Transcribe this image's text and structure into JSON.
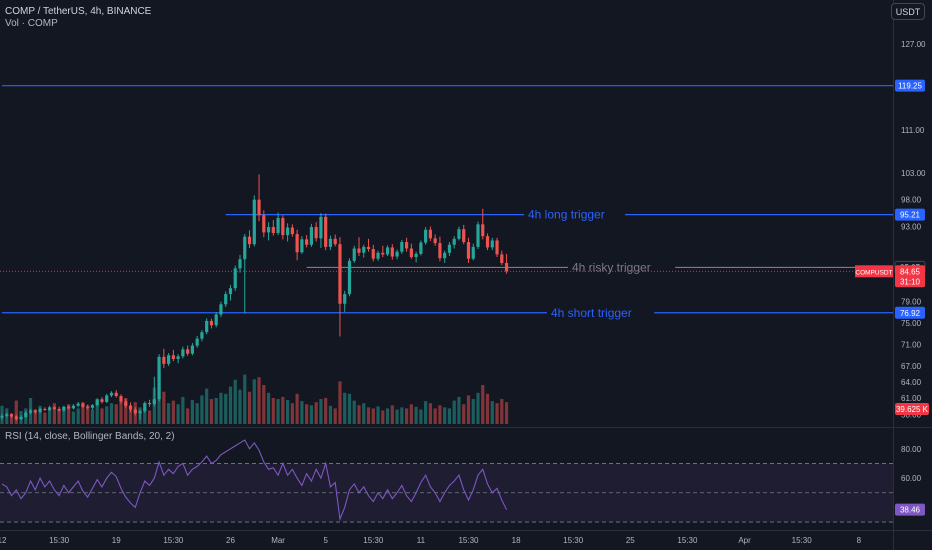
{
  "header": {
    "symbol_line": "COMP / TetherUS, 4h, BINANCE",
    "volume_label": "Vol · COMP",
    "currency_button": "USDT",
    "rsi_label": "RSI (14, close, Bollinger Bands, 20, 2)"
  },
  "colors": {
    "background": "#131722",
    "bull": "#26a69a",
    "bear": "#ef5350",
    "level_line": "#2962ff",
    "risky_line": "#787b86",
    "rsi_line": "#7e57c2",
    "rsi_band_fill": "#7e57c2",
    "price_tag": "#f23645",
    "axis_text": "#b2b5be"
  },
  "chart_data": [
    {
      "type": "candlestick",
      "title": "COMP / TetherUS, 4h, BINANCE",
      "ylim": [
        56,
        130
      ],
      "y_ticks": [
        "127.00",
        "111.00",
        "103.00",
        "98.00",
        "93.00",
        "79.00",
        "75.00",
        "71.00",
        "67.00",
        "64.00",
        "61.00",
        "58.00"
      ],
      "x_ticks": [
        "12",
        "15:30",
        "19",
        "15:30",
        "26",
        "Mar",
        "5",
        "15:30",
        "11",
        "15:30",
        "18",
        "15:30",
        "25",
        "15:30",
        "Apr",
        "15:30",
        "8"
      ],
      "candles_ohlc": [
        [
          57.4,
          58.0,
          57.0,
          57.7
        ],
        [
          57.7,
          58.3,
          57.4,
          58.0
        ],
        [
          58.0,
          58.2,
          57.3,
          57.6
        ],
        [
          57.6,
          57.9,
          56.8,
          57.1
        ],
        [
          57.1,
          57.8,
          56.9,
          57.5
        ],
        [
          57.5,
          58.6,
          57.3,
          58.3
        ],
        [
          58.3,
          59.0,
          58.0,
          58.7
        ],
        [
          58.7,
          58.9,
          58.1,
          58.4
        ],
        [
          58.4,
          59.2,
          58.2,
          59.0
        ],
        [
          59.0,
          59.3,
          58.6,
          58.8
        ],
        [
          58.8,
          59.6,
          58.6,
          59.3
        ],
        [
          59.3,
          59.5,
          58.8,
          59.0
        ],
        [
          59.0,
          59.4,
          58.5,
          58.7
        ],
        [
          58.7,
          59.6,
          58.5,
          59.4
        ],
        [
          59.4,
          59.7,
          58.9,
          59.1
        ],
        [
          59.1,
          59.9,
          58.9,
          59.6
        ],
        [
          59.6,
          60.3,
          59.3,
          60.0
        ],
        [
          60.0,
          60.2,
          59.2,
          59.4
        ],
        [
          59.4,
          59.8,
          58.9,
          59.2
        ],
        [
          59.2,
          59.9,
          58.9,
          59.7
        ],
        [
          59.7,
          61.0,
          59.5,
          60.8
        ],
        [
          60.8,
          61.2,
          60.0,
          60.3
        ],
        [
          60.3,
          61.8,
          60.1,
          61.5
        ],
        [
          61.5,
          62.3,
          61.2,
          62.0
        ],
        [
          62.0,
          62.5,
          61.1,
          61.4
        ],
        [
          61.4,
          61.7,
          60.0,
          60.4
        ],
        [
          60.4,
          60.9,
          59.2,
          59.6
        ],
        [
          59.6,
          60.2,
          58.4,
          58.9
        ],
        [
          58.9,
          59.3,
          57.8,
          58.2
        ],
        [
          58.2,
          58.9,
          57.0,
          58.6
        ],
        [
          58.6,
          60.4,
          58.3,
          60.1
        ],
        [
          60.1,
          60.7,
          59.4,
          59.9
        ],
        [
          59.9,
          65.0,
          59.5,
          60.8
        ],
        [
          60.8,
          69.2,
          60.4,
          68.7
        ],
        [
          68.7,
          70.2,
          66.6,
          67.4
        ],
        [
          67.4,
          69.4,
          67.0,
          69.0
        ],
        [
          69.0,
          70.0,
          67.9,
          68.3
        ],
        [
          68.3,
          69.2,
          67.5,
          68.8
        ],
        [
          68.8,
          70.6,
          68.4,
          70.1
        ],
        [
          70.1,
          70.8,
          68.9,
          69.3
        ],
        [
          69.3,
          71.3,
          69.0,
          70.8
        ],
        [
          70.8,
          72.6,
          70.4,
          72.1
        ],
        [
          72.1,
          73.7,
          71.6,
          73.3
        ],
        [
          73.3,
          75.9,
          72.9,
          75.4
        ],
        [
          75.4,
          75.8,
          74.0,
          74.6
        ],
        [
          74.6,
          77.0,
          74.2,
          76.6
        ],
        [
          76.6,
          79.0,
          76.1,
          78.5
        ],
        [
          78.5,
          80.9,
          78.0,
          80.4
        ],
        [
          80.4,
          82.1,
          79.2,
          81.5
        ],
        [
          81.5,
          85.7,
          81.0,
          85.2
        ],
        [
          85.2,
          87.7,
          84.4,
          86.9
        ],
        [
          86.9,
          91.6,
          76.8,
          91.1
        ],
        [
          91.1,
          92.3,
          89.0,
          89.7
        ],
        [
          89.7,
          98.8,
          89.3,
          98.0
        ],
        [
          98.0,
          102.7,
          94.0,
          95.1
        ],
        [
          95.1,
          96.0,
          91.0,
          91.9
        ],
        [
          91.9,
          93.8,
          90.4,
          92.9
        ],
        [
          92.9,
          94.2,
          91.3,
          91.8
        ],
        [
          91.8,
          95.6,
          91.4,
          94.6
        ],
        [
          94.6,
          95.1,
          90.6,
          91.4
        ],
        [
          91.4,
          93.6,
          90.2,
          92.8
        ],
        [
          92.8,
          93.4,
          91.1,
          91.6
        ],
        [
          91.6,
          92.4,
          86.7,
          88.2
        ],
        [
          88.2,
          91.2,
          87.9,
          90.6
        ],
        [
          90.6,
          91.4,
          89.1,
          89.6
        ],
        [
          89.6,
          93.5,
          89.2,
          92.9
        ],
        [
          92.9,
          93.8,
          90.2,
          90.8
        ],
        [
          90.8,
          95.5,
          89.0,
          94.8
        ],
        [
          94.8,
          95.4,
          88.6,
          89.2
        ],
        [
          89.2,
          91.3,
          88.6,
          90.7
        ],
        [
          90.7,
          91.5,
          89.3,
          89.7
        ],
        [
          89.7,
          91.0,
          72.5,
          78.6
        ],
        [
          78.6,
          81.0,
          77.1,
          80.4
        ],
        [
          80.4,
          87.1,
          80.0,
          86.6
        ],
        [
          86.6,
          89.4,
          86.2,
          88.9
        ],
        [
          88.9,
          91.0,
          87.5,
          88.1
        ],
        [
          88.1,
          89.6,
          87.2,
          89.2
        ],
        [
          89.2,
          90.7,
          88.3,
          88.8
        ],
        [
          88.8,
          89.6,
          86.5,
          87.0
        ],
        [
          87.0,
          88.5,
          86.6,
          88.1
        ],
        [
          88.1,
          89.4,
          87.3,
          87.8
        ],
        [
          87.8,
          89.5,
          87.5,
          89.1
        ],
        [
          89.1,
          89.7,
          86.8,
          87.4
        ],
        [
          87.4,
          88.7,
          86.9,
          88.3
        ],
        [
          88.3,
          90.5,
          87.9,
          90.1
        ],
        [
          90.1,
          90.9,
          88.3,
          88.9
        ],
        [
          88.9,
          89.8,
          87.0,
          87.3
        ],
        [
          87.3,
          88.3,
          86.3,
          87.9
        ],
        [
          87.9,
          90.4,
          87.6,
          90.0
        ],
        [
          90.0,
          92.9,
          89.6,
          92.4
        ],
        [
          92.4,
          93.0,
          90.3,
          90.8
        ],
        [
          90.8,
          91.5,
          89.4,
          89.9
        ],
        [
          89.9,
          91.1,
          86.5,
          87.1
        ],
        [
          87.1,
          88.5,
          86.2,
          88.1
        ],
        [
          88.1,
          90.1,
          87.5,
          89.6
        ],
        [
          89.6,
          91.2,
          88.9,
          90.7
        ],
        [
          90.7,
          93.0,
          90.4,
          92.5
        ],
        [
          92.5,
          93.3,
          89.7,
          90.1
        ],
        [
          90.1,
          90.9,
          86.2,
          87.0
        ],
        [
          87.0,
          89.8,
          86.7,
          89.2
        ],
        [
          89.2,
          93.9,
          88.8,
          93.4
        ],
        [
          93.4,
          96.3,
          90.6,
          91.2
        ],
        [
          91.2,
          91.7,
          88.6,
          89.1
        ],
        [
          89.1,
          90.9,
          88.6,
          90.4
        ],
        [
          90.4,
          90.9,
          87.3,
          87.8
        ],
        [
          87.8,
          88.5,
          85.8,
          86.2
        ],
        [
          86.2,
          87.9,
          84.2,
          84.65
        ]
      ],
      "x_ticks_at_candle": [
        0,
        12,
        24,
        36,
        48,
        58,
        68,
        78,
        88,
        98,
        108,
        120,
        132,
        144,
        156,
        168,
        180
      ],
      "annotation_lines": [
        {
          "label": "4h long trigger",
          "price": 95.21,
          "tag": "95.21",
          "color": "#2962ff",
          "from_candle": 47,
          "text_color": "#2962ff"
        },
        {
          "label": "4h risky trigger",
          "price": 85.37,
          "tag": "85.37",
          "color": "#787b86",
          "from_candle": 64,
          "text_color": "#787b86"
        },
        {
          "label": "4h short trigger",
          "price": 76.92,
          "tag": "76.92",
          "color": "#2962ff",
          "from_candle": 0,
          "text_color": "#2962ff"
        },
        {
          "label": "",
          "price": 119.25,
          "tag": "119.25",
          "color": "#2962ff",
          "from_candle": 0,
          "text_color": "#2962ff"
        }
      ],
      "last_price": {
        "symbol": "COMPUSDT",
        "price": "84.65",
        "countdown": "31:10"
      }
    },
    {
      "type": "bar",
      "title": "Vol · COMP",
      "last_value_tag": "39.625 K",
      "relative_volumes": [
        0.35,
        0.3,
        0.2,
        0.45,
        0.25,
        0.3,
        0.5,
        0.28,
        0.35,
        0.22,
        0.3,
        0.4,
        0.26,
        0.33,
        0.38,
        0.24,
        0.3,
        0.42,
        0.36,
        0.28,
        0.45,
        0.3,
        0.34,
        0.4,
        0.38,
        0.44,
        0.5,
        0.36,
        0.42,
        0.32,
        0.3,
        0.26,
        0.7,
        1.0,
        0.62,
        0.4,
        0.45,
        0.38,
        0.52,
        0.3,
        0.46,
        0.4,
        0.55,
        0.68,
        0.48,
        0.5,
        0.6,
        0.58,
        0.72,
        0.85,
        0.66,
        0.95,
        0.62,
        0.86,
        0.9,
        0.75,
        0.6,
        0.5,
        0.48,
        0.52,
        0.46,
        0.4,
        0.58,
        0.44,
        0.38,
        0.36,
        0.42,
        0.48,
        0.5,
        0.35,
        0.3,
        0.82,
        0.6,
        0.58,
        0.45,
        0.36,
        0.4,
        0.32,
        0.3,
        0.34,
        0.26,
        0.3,
        0.36,
        0.28,
        0.32,
        0.3,
        0.38,
        0.33,
        0.28,
        0.44,
        0.4,
        0.3,
        0.36,
        0.32,
        0.3,
        0.45,
        0.52,
        0.38,
        0.55,
        0.48,
        0.6,
        0.75,
        0.58,
        0.44,
        0.4,
        0.48,
        0.42
      ]
    },
    {
      "type": "line",
      "title": "RSI (14, close, Bollinger Bands, 20, 2)",
      "ylim": [
        28,
        86
      ],
      "y_ticks": [
        "80.00",
        "60.00",
        "40.00"
      ],
      "bands": [
        70,
        50,
        30
      ],
      "last_value": "38.46",
      "values": [
        56,
        54,
        48,
        52,
        46,
        50,
        58,
        52,
        60,
        54,
        58,
        52,
        48,
        55,
        50,
        54,
        58,
        51,
        47,
        53,
        59,
        54,
        60,
        64,
        61,
        53,
        47,
        43,
        40,
        50,
        58,
        55,
        60,
        71,
        62,
        66,
        63,
        68,
        70,
        62,
        66,
        68,
        71,
        75,
        70,
        72,
        76,
        78,
        80,
        82,
        84,
        86,
        80,
        84,
        79,
        71,
        66,
        67,
        62,
        70,
        62,
        66,
        60,
        55,
        63,
        58,
        66,
        60,
        70,
        54,
        57,
        32,
        40,
        52,
        56,
        50,
        54,
        48,
        44,
        50,
        46,
        52,
        46,
        50,
        55,
        48,
        44,
        50,
        57,
        62,
        54,
        50,
        44,
        50,
        55,
        58,
        62,
        52,
        45,
        52,
        62,
        66,
        56,
        50,
        53,
        45,
        38.46
      ]
    }
  ]
}
